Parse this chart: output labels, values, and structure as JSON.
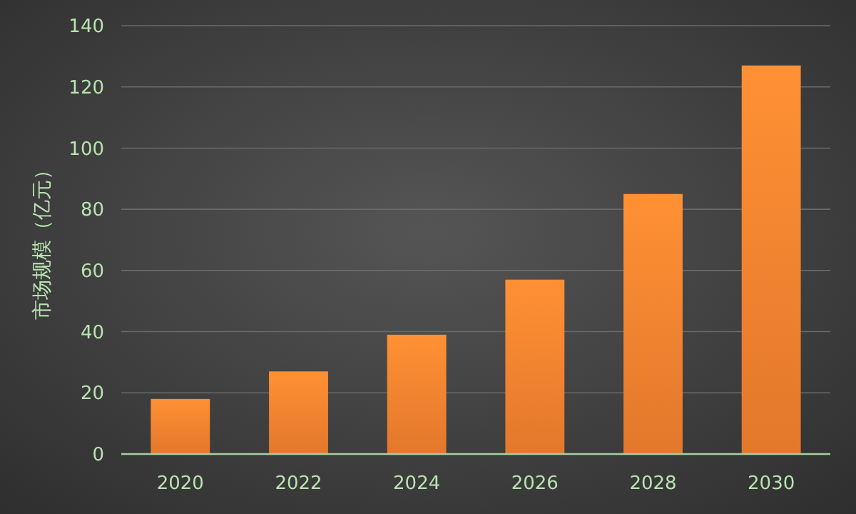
{
  "chart_data": {
    "type": "bar",
    "ylabel": "市场规模（亿元）",
    "categories": [
      "2020",
      "2022",
      "2024",
      "2026",
      "2028",
      "2030"
    ],
    "values": [
      18,
      27,
      39,
      57,
      85,
      127
    ],
    "color": "#f07f2e",
    "ylim": [
      0,
      140
    ],
    "yticks": [
      0,
      20,
      40,
      60,
      80,
      100,
      120,
      140
    ],
    "grid": "y"
  }
}
